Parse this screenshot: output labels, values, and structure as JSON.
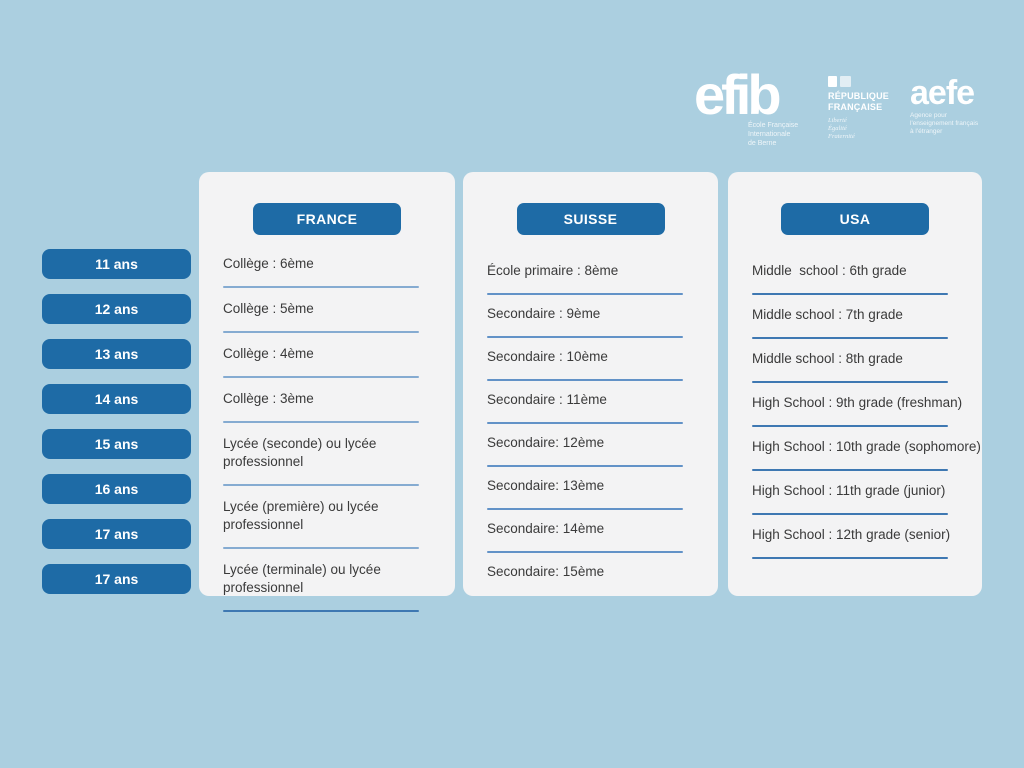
{
  "colors": {
    "page_bg": "#abcfe0",
    "card_bg": "#f3f3f4",
    "accent": "#1e6ba6",
    "text": "#3a3a3a",
    "sep_light": "#85abd1",
    "sep_medium": "#6292c7",
    "sep_strong": "#3e78b2",
    "logo": "#ffffff"
  },
  "logos": {
    "efib": {
      "word": "efib",
      "tagline": [
        "École Française",
        "Internationale",
        "de Berne"
      ]
    },
    "republique": {
      "title": [
        "RÉPUBLIQUE",
        "FRANÇAISE"
      ],
      "motto": [
        "Liberté",
        "Égalité",
        "Fraternité"
      ]
    },
    "aefe": {
      "word": "aefe",
      "tagline": [
        "Agence pour",
        "l'enseignement français",
        "à l'étranger"
      ]
    }
  },
  "ages": [
    "11 ans",
    "12 ans",
    "13 ans",
    "14 ans",
    "15 ans",
    "16 ans",
    "17 ans",
    "17 ans"
  ],
  "columns": {
    "france": {
      "title": "FRANCE",
      "items": [
        "Collège : 6ème",
        "Collège : 5ème",
        "Collège : 4ème",
        "Collège : 3ème",
        "Lycée (seconde) ou lycée professionnel",
        "Lycée (première) ou lycée professionnel",
        "Lycée (terminale) ou lycée professionnel"
      ]
    },
    "suisse": {
      "title": "SUISSE",
      "items": [
        "École primaire : 8ème",
        "Secondaire : 9ème",
        "Secondaire : 10ème",
        "Secondaire : 11ème",
        "Secondaire: 12ème",
        "Secondaire: 13ème",
        "Secondaire: 14ème",
        "Secondaire: 15ème"
      ]
    },
    "usa": {
      "title": "USA",
      "items": [
        "Middle  school : 6th grade",
        "Middle school : 7th grade",
        "Middle school : 8th grade",
        "High School : 9th grade (freshman)",
        "High School : 10th grade (sophomore)",
        "High School : 11th grade (junior)",
        "High School : 12th grade (senior)"
      ]
    }
  }
}
